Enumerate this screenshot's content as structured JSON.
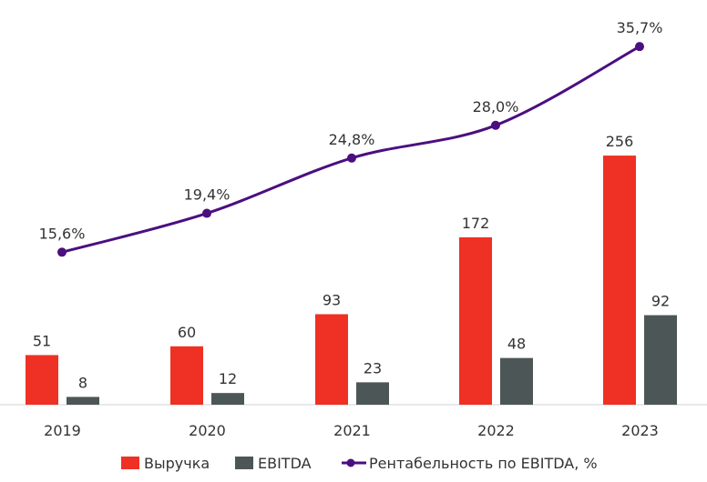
{
  "chart_data": {
    "type": "bar",
    "categories": [
      "2019",
      "2020",
      "2021",
      "2022",
      "2023"
    ],
    "series": [
      {
        "name": "Выручка",
        "kind": "bar",
        "values": [
          51,
          60,
          93,
          172,
          256
        ],
        "labels": [
          "51",
          "60",
          "93",
          "172",
          "256"
        ]
      },
      {
        "name": "EBITDA",
        "kind": "bar",
        "values": [
          8,
          12,
          23,
          48,
          92
        ],
        "labels": [
          "8",
          "12",
          "23",
          "48",
          "92"
        ]
      },
      {
        "name": "Рентабельность по EBITDA, %",
        "kind": "line",
        "values": [
          15.6,
          19.4,
          24.8,
          28.0,
          35.7
        ],
        "labels": [
          "15,6%",
          "19,4%",
          "24,8%",
          "28,0%",
          "35,7%"
        ]
      }
    ],
    "legend_position": "bottom",
    "grid": false
  },
  "colors": {
    "revenue": "#EE3124",
    "ebitda": "#4D5656",
    "margin": "#4B0F80",
    "axis": "#D0D0D0"
  }
}
